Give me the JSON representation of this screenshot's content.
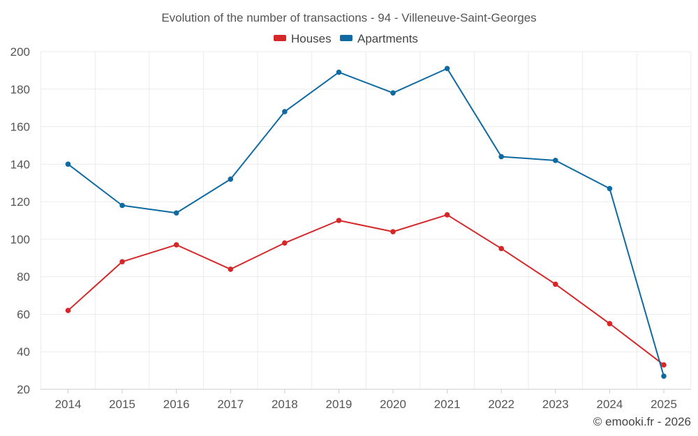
{
  "chart_data": {
    "type": "line",
    "title": "Evolution of the number of transactions - 94 - Villeneuve-Saint-Georges",
    "xlabel": "",
    "ylabel": "",
    "categories": [
      "2014",
      "2015",
      "2016",
      "2017",
      "2018",
      "2019",
      "2020",
      "2021",
      "2022",
      "2023",
      "2024",
      "2025"
    ],
    "ylim": [
      20,
      200
    ],
    "yticks": [
      20,
      40,
      60,
      80,
      100,
      120,
      140,
      160,
      180,
      200
    ],
    "grid": true,
    "legend_position": "top-center",
    "series": [
      {
        "name": "Houses",
        "color": "#d62728",
        "values": [
          62,
          88,
          97,
          84,
          98,
          110,
          104,
          113,
          95,
          76,
          55,
          33
        ]
      },
      {
        "name": "Apartments",
        "color": "#0e6aa1",
        "values": [
          140,
          118,
          114,
          132,
          168,
          189,
          178,
          191,
          144,
          142,
          127,
          27
        ]
      }
    ]
  },
  "credit": "© emooki.fr - 2026"
}
